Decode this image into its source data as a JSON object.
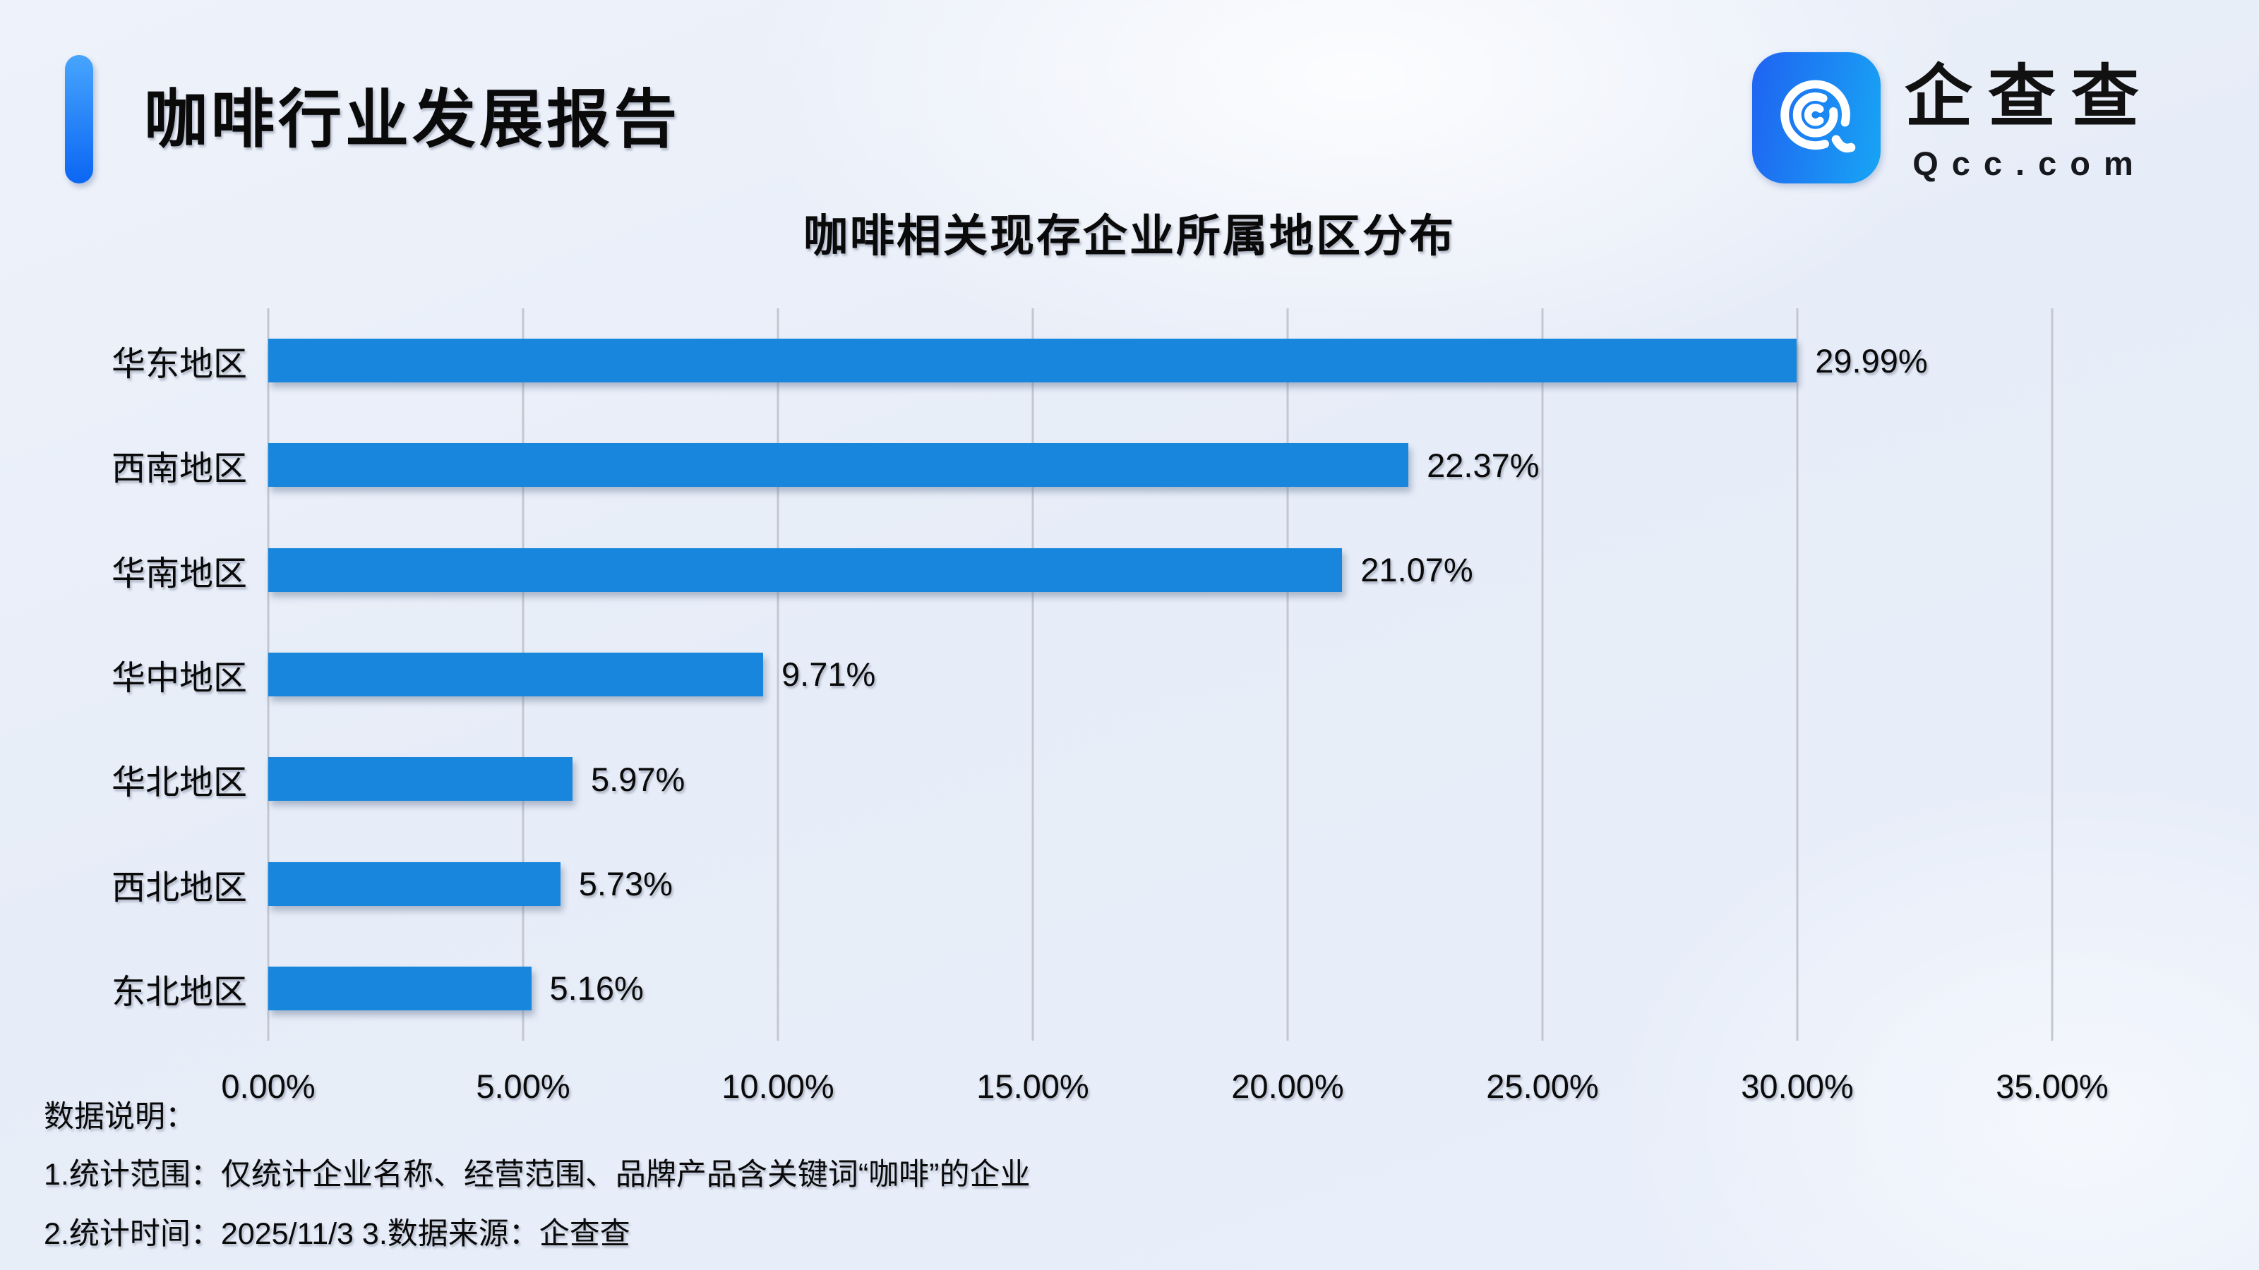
{
  "header": {
    "title": "咖啡行业发展报告",
    "logo": {
      "name": "企查查",
      "domain": "Qcc.com"
    }
  },
  "chart_data": {
    "type": "bar",
    "orientation": "horizontal",
    "title": "咖啡相关现存企业所属地区分布",
    "categories": [
      "华东地区",
      "西南地区",
      "华南地区",
      "华中地区",
      "华北地区",
      "西北地区",
      "东北地区"
    ],
    "values": [
      29.99,
      22.37,
      21.07,
      9.71,
      5.97,
      5.73,
      5.16
    ],
    "value_labels": [
      "29.99%",
      "22.37%",
      "21.07%",
      "9.71%",
      "5.97%",
      "5.73%",
      "5.16%"
    ],
    "xlim": [
      0,
      35
    ],
    "xticks": [
      0,
      5,
      10,
      15,
      20,
      25,
      30,
      35
    ],
    "xtick_labels": [
      "0.00%",
      "5.00%",
      "10.00%",
      "15.00%",
      "20.00%",
      "25.00%",
      "30.00%",
      "35.00%"
    ],
    "grid": true,
    "legend": "none",
    "bar_color": "#1886dc"
  },
  "notes": {
    "heading": "数据说明：",
    "line1": "1.统计范围：仅统计企业名称、经营范围、品牌产品含关键词“咖啡”的企业",
    "line2": "2.统计时间：2025/11/3  3.数据来源：企查查"
  },
  "colors": {
    "accent_light": "#47a5fd",
    "accent_dark": "#0b66f3",
    "logo_blue_1": "#1f66f2",
    "logo_blue_2": "#18a2f4",
    "gridline": "#c3c7d0",
    "background": "#eaeff9",
    "text": "#0a0a0a"
  }
}
